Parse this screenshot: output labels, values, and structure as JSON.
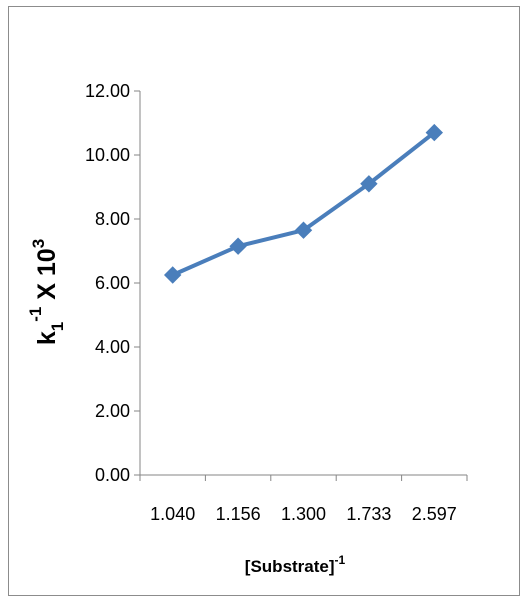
{
  "chart_data": {
    "type": "line",
    "categories": [
      "1.040",
      "1.156",
      "1.300",
      "1.733",
      "2.597"
    ],
    "series": [
      {
        "values": [
          6.25,
          7.15,
          7.65,
          9.1,
          10.7
        ]
      }
    ],
    "y_ticks": [
      "0.00",
      "2.00",
      "4.00",
      "6.00",
      "8.00",
      "10.00",
      "12.00"
    ],
    "ylim": [
      0,
      12
    ],
    "xlabel": {
      "base": "[Substrate]",
      "sup": "-1"
    },
    "ylabel": {
      "k": "k",
      "sub": "1",
      "sup1": "-1",
      "mid": " X 10",
      "sup2": "3"
    },
    "grid": false,
    "legend": "none",
    "line_color": "#4a7ebb",
    "marker": "diamond"
  }
}
